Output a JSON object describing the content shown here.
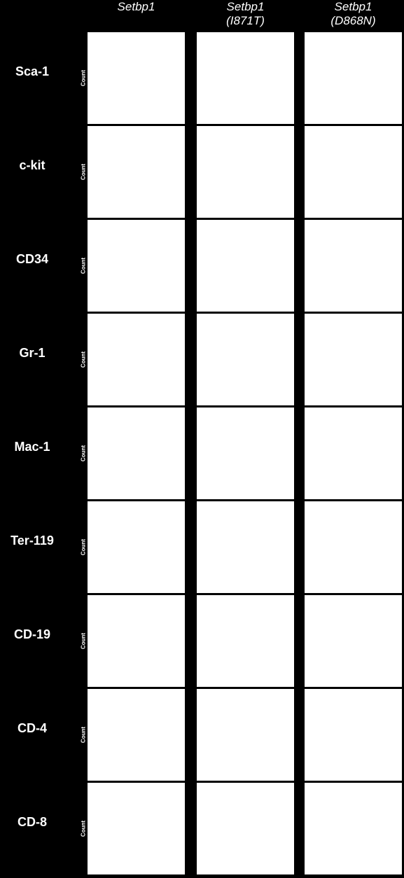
{
  "columns": [
    {
      "name": "Setbp1"
    },
    {
      "name": "Setbp1",
      "variant": "(I871T)"
    },
    {
      "name": "Setbp1",
      "variant": "(D868N)"
    }
  ],
  "rows": [
    "Sca-1",
    "c-kit",
    "CD34",
    "Gr-1",
    "Mac-1",
    "Ter-119",
    "CD-19",
    "CD-4",
    "CD-8"
  ],
  "axis_label": "Count"
}
